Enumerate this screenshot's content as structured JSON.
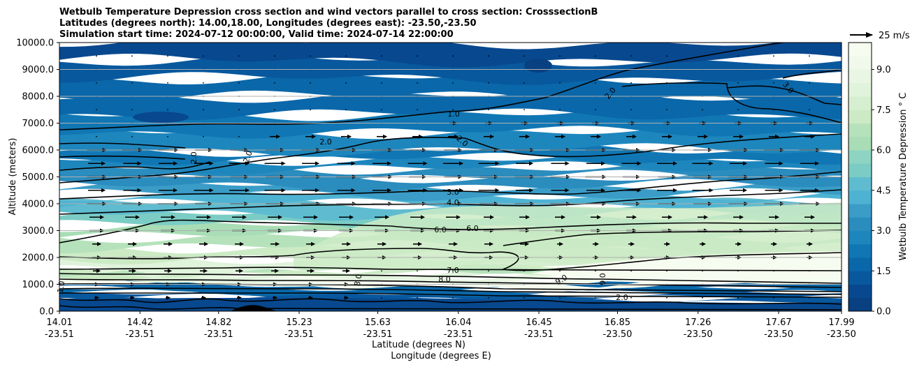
{
  "chart_data": {
    "type": "heatmap",
    "subtype": "filled-contour cross section with line contours and wind vectors",
    "title_lines": [
      "Wetbulb Temperature Depression cross section and wind vectors parallel to cross section: CrosssectionB",
      "Latitudes (degrees north): 14.00,18.00, Longitudes (degrees east): -23.50,-23.50",
      "Simulation start time: 2024-07-12 00:00:00, Valid time: 2024-07-14 22:00:00"
    ],
    "ylabel": "Altitude (meters)",
    "xlabel_lat": "Latitude (degrees N)",
    "xlabel_lon": "Longitude (degrees E)",
    "ylim": [
      0,
      10000
    ],
    "y_ticks": [
      "0.0",
      "1000.0",
      "2000.0",
      "3000.0",
      "4000.0",
      "5000.0",
      "6000.0",
      "7000.0",
      "8000.0",
      "9000.0",
      "10000.0"
    ],
    "y_tick_values": [
      0,
      1000,
      2000,
      3000,
      4000,
      5000,
      6000,
      7000,
      8000,
      9000,
      10000
    ],
    "xlim": [
      14.01,
      17.99
    ],
    "x_ticks": [
      {
        "lat": "14.01",
        "lon": "-23.51",
        "value": 14.01
      },
      {
        "lat": "14.42",
        "lon": "-23.51",
        "value": 14.42
      },
      {
        "lat": "14.82",
        "lon": "-23.51",
        "value": 14.82
      },
      {
        "lat": "15.23",
        "lon": "-23.51",
        "value": 15.23
      },
      {
        "lat": "15.63",
        "lon": "-23.51",
        "value": 15.63
      },
      {
        "lat": "16.04",
        "lon": "-23.51",
        "value": 16.04
      },
      {
        "lat": "16.45",
        "lon": "-23.51",
        "value": 16.45
      },
      {
        "lat": "16.85",
        "lon": "-23.50",
        "value": 16.85
      },
      {
        "lat": "17.26",
        "lon": "-23.50",
        "value": 17.26
      },
      {
        "lat": "17.67",
        "lon": "-23.50",
        "value": 17.67
      },
      {
        "lat": "17.99",
        "lon": "-23.50",
        "value": 17.99
      }
    ],
    "grid": "horizontal",
    "colorbar": {
      "label": "Wetbulb Temperature Depression $^\\circ$ C",
      "label_display": "Wetbulb Temperature Depression ° C",
      "ticks": [
        "0.0",
        "1.5",
        "3.0",
        "4.5",
        "6.0",
        "7.5",
        "9.0"
      ],
      "tick_values": [
        0,
        1.5,
        3,
        4.5,
        6,
        7.5,
        9
      ],
      "range": [
        0,
        10
      ],
      "levels": 20,
      "colors": [
        "#084081",
        "#08488e",
        "#08589e",
        "#0a67a9",
        "#1077b4",
        "#1d86bd",
        "#2b8cbe",
        "#3a9cc7",
        "#4eb3d3",
        "#5fbcd0",
        "#7bccc4",
        "#8ed4c2",
        "#a8ddb5",
        "#b6e2bb",
        "#ccebc5",
        "#d6efd0",
        "#e0f3db",
        "#e8f6e3",
        "#f0f9ec",
        "#f7fcf0"
      ]
    },
    "quiver_key": {
      "label": "25 m/s",
      "speed": 25
    },
    "contour_labels_visible": [
      "1.0",
      "2.0",
      "2.0",
      "2.0",
      "2.0",
      "3.0",
      "4.0",
      "6.0",
      "6.0",
      "7.0",
      "8.0",
      "9.0",
      "9.0",
      "3.0",
      "2.0",
      "2.0",
      "8.0",
      "1.0"
    ],
    "field_bands": [
      {
        "alt_range": [
          0,
          1000
        ],
        "value_range": [
          0.5,
          2.0
        ]
      },
      {
        "alt_range": [
          1000,
          1600
        ],
        "value_range": [
          6.0,
          10.0
        ]
      },
      {
        "alt_range": [
          1600,
          4000
        ],
        "value_range": [
          4.0,
          8.0
        ]
      },
      {
        "alt_range": [
          4000,
          6000
        ],
        "value_range": [
          2.0,
          4.0
        ]
      },
      {
        "alt_range": [
          6000,
          10000
        ],
        "value_range": [
          0.5,
          2.5
        ]
      }
    ],
    "wind_vector_rows_altitude": [
      500,
      1000,
      1500,
      2000,
      2500,
      3000,
      3500,
      4000,
      4500,
      5000,
      5500,
      6000,
      6500,
      7000,
      7500,
      8000,
      8500,
      9000,
      9500
    ]
  }
}
